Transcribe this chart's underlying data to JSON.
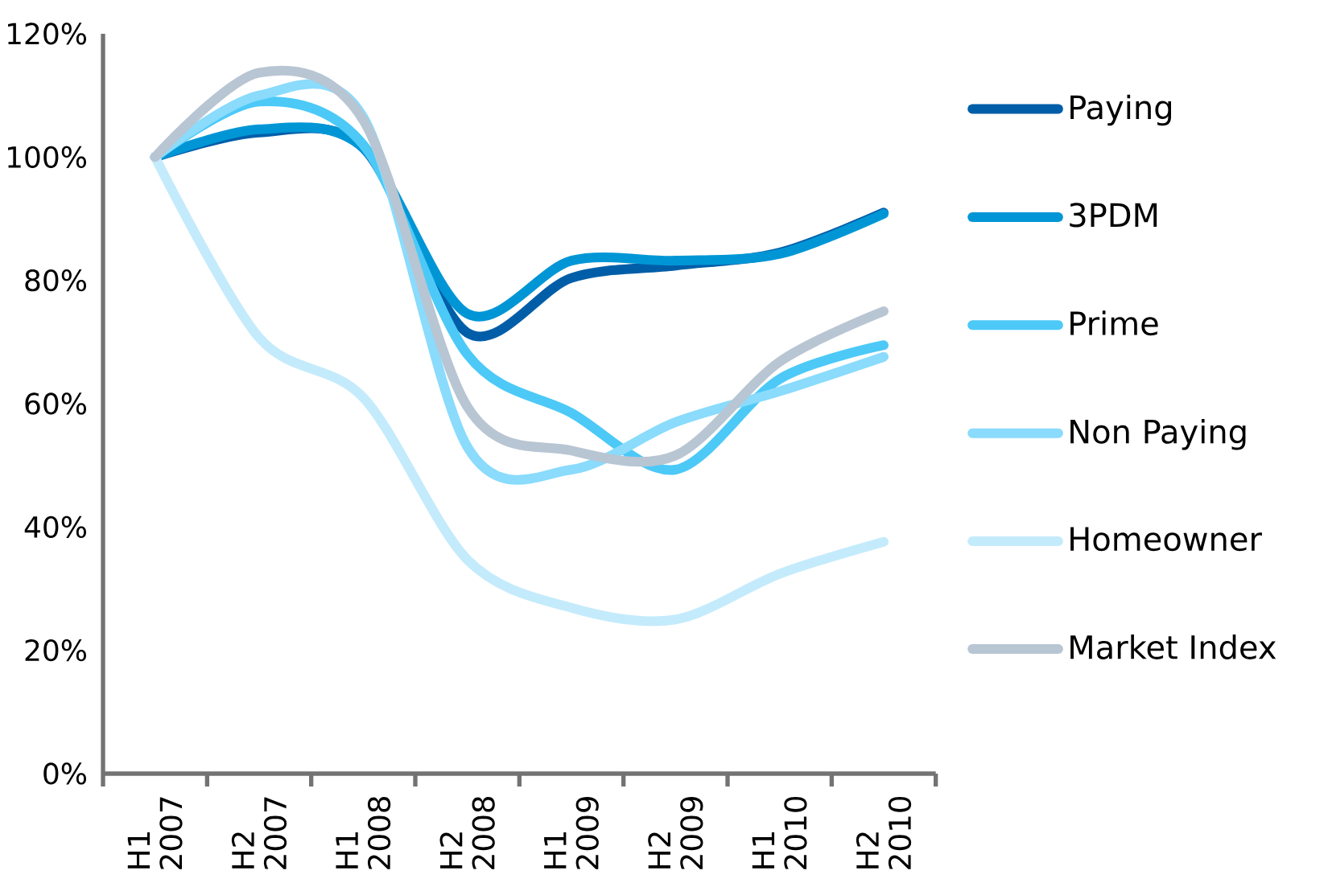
{
  "chart_data": {
    "type": "line",
    "categories": [
      "H1 2007",
      "H2 2007",
      "H1 2008",
      "H2 2008",
      "H1 2009",
      "H2 2009",
      "H1 2010",
      "H2 2010"
    ],
    "series": [
      {
        "name": "Paying",
        "color": "#005ea8",
        "values": [
          100,
          104,
          101.5,
          71.5,
          80.4,
          82.4,
          84.5,
          91
        ]
      },
      {
        "name": "3PDM",
        "color": "#0096d6",
        "values": [
          100,
          104.5,
          101.5,
          74.6,
          83.2,
          83.2,
          84.3,
          90.8
        ]
      },
      {
        "name": "Prime",
        "color": "#4cc9f7",
        "values": [
          100,
          109,
          102,
          68,
          58.5,
          49.3,
          64,
          69.5
        ]
      },
      {
        "name": "Non Paying",
        "color": "#8adbfc",
        "values": [
          100,
          110,
          106.5,
          53,
          49.3,
          57,
          62,
          67.6
        ]
      },
      {
        "name": "Homeowner",
        "color": "#c4ebfb",
        "values": [
          100,
          70.7,
          61,
          34.7,
          26.9,
          25,
          32.4,
          37.6
        ]
      },
      {
        "name": "Market Index",
        "color": "#b8c5d3",
        "values": [
          100,
          113.7,
          106,
          59.5,
          52.4,
          51.6,
          66.8,
          75
        ]
      }
    ],
    "ylim": [
      0,
      120
    ],
    "yticks": [
      {
        "value": 0,
        "label": "0%"
      },
      {
        "value": 20,
        "label": "20%"
      },
      {
        "value": 40,
        "label": "40%"
      },
      {
        "value": 60,
        "label": "60%"
      },
      {
        "value": 80,
        "label": "80%"
      },
      {
        "value": 100,
        "label": "100%"
      },
      {
        "value": 120,
        "label": "120%"
      }
    ],
    "legend": "right",
    "grid": false,
    "marker": "none",
    "line_style": "solid"
  }
}
